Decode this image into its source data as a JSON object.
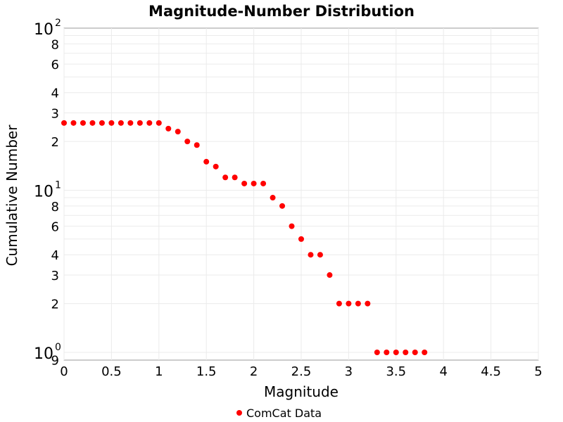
{
  "chart_data": {
    "type": "scatter",
    "title": "Magnitude-Number Distribution",
    "xlabel": "Magnitude",
    "ylabel": "Cumulative Number",
    "xlim": [
      0,
      5
    ],
    "ylim": [
      0.9,
      100
    ],
    "yscale": "log",
    "grid": true,
    "legend_position": "bottom",
    "x_ticks": [
      "0",
      "0.5",
      "1",
      "1.5",
      "2",
      "2.5",
      "3",
      "3.5",
      "4",
      "4.5",
      "5"
    ],
    "y_major_ticks": [
      {
        "base": "10",
        "exp": "0",
        "value": 1
      },
      {
        "base": "10",
        "exp": "1",
        "value": 10
      },
      {
        "base": "10",
        "exp": "2",
        "value": 100
      }
    ],
    "y_minor_ticks": [
      {
        "label": "9",
        "value": 0.9
      },
      {
        "label": "2",
        "value": 2
      },
      {
        "label": "3",
        "value": 3
      },
      {
        "label": "4",
        "value": 4
      },
      {
        "label": "6",
        "value": 6
      },
      {
        "label": "8",
        "value": 8
      },
      {
        "label": "2",
        "value": 20
      },
      {
        "label": "3",
        "value": 30
      },
      {
        "label": "4",
        "value": 40
      },
      {
        "label": "6",
        "value": 60
      },
      {
        "label": "8",
        "value": 80
      }
    ],
    "series": [
      {
        "name": "ComCat Data",
        "color": "#ff0000",
        "x": [
          0,
          0.1,
          0.2,
          0.3,
          0.4,
          0.5,
          0.6,
          0.7,
          0.8,
          0.9,
          1.0,
          1.1,
          1.2,
          1.3,
          1.4,
          1.5,
          1.6,
          1.7,
          1.8,
          1.9,
          2.0,
          2.1,
          2.2,
          2.3,
          2.4,
          2.5,
          2.6,
          2.7,
          2.8,
          2.9,
          3.0,
          3.1,
          3.2,
          3.3,
          3.4,
          3.5,
          3.6,
          3.7,
          3.8
        ],
        "y": [
          26,
          26,
          26,
          26,
          26,
          26,
          26,
          26,
          26,
          26,
          26,
          24,
          23,
          20,
          19,
          15,
          14,
          12,
          12,
          11,
          11,
          11,
          9,
          8,
          6,
          5,
          4,
          4,
          3,
          2,
          2,
          2,
          2,
          1,
          1,
          1,
          1,
          1,
          1
        ]
      }
    ]
  }
}
